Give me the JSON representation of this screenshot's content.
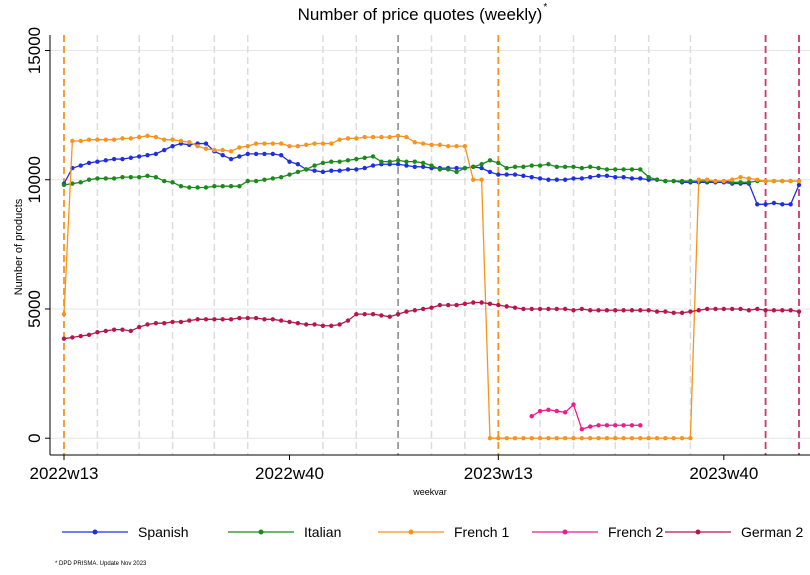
{
  "chart_data": {
    "type": "line",
    "title": "Number of price quotes (weekly)",
    "title_note": "*",
    "x_label": "weekvar",
    "y_label": "Number of products",
    "footnote": "* DPD PRISMA. Update Nov 2023",
    "categories": [
      "2022w13",
      "2022w14",
      "2022w15",
      "2022w16",
      "2022w17",
      "2022w18",
      "2022w19",
      "2022w20",
      "2022w21",
      "2022w22",
      "2022w23",
      "2022w24",
      "2022w25",
      "2022w26",
      "2022w27",
      "2022w28",
      "2022w29",
      "2022w30",
      "2022w31",
      "2022w32",
      "2022w33",
      "2022w34",
      "2022w35",
      "2022w36",
      "2022w37",
      "2022w38",
      "2022w39",
      "2022w40",
      "2022w41",
      "2022w42",
      "2022w43",
      "2022w44",
      "2022w45",
      "2022w46",
      "2022w47",
      "2022w48",
      "2022w49",
      "2022w50",
      "2022w51",
      "2022w52",
      "2023w1",
      "2023w2",
      "2023w3",
      "2023w4",
      "2023w5",
      "2023w6",
      "2023w7",
      "2023w8",
      "2023w9",
      "2023w10",
      "2023w11",
      "2023w12",
      "2023w13",
      "2023w14",
      "2023w15",
      "2023w16",
      "2023w17",
      "2023w18",
      "2023w19",
      "2023w20",
      "2023w21",
      "2023w22",
      "2023w23",
      "2023w24",
      "2023w25",
      "2023w26",
      "2023w27",
      "2023w28",
      "2023w29",
      "2023w30",
      "2023w31",
      "2023w32",
      "2023w33",
      "2023w34",
      "2023w35",
      "2023w36",
      "2023w37",
      "2023w38",
      "2023w39",
      "2023w40",
      "2023w41",
      "2023w42",
      "2023w43",
      "2023w44",
      "2023w45",
      "2023w46",
      "2023w47",
      "2023w48",
      "2023w49"
    ],
    "xticks": [
      "2022w13",
      "2022w40",
      "2023w13",
      "2023w40"
    ],
    "ylim": [
      -650,
      15600
    ],
    "yticks": [
      0,
      5000,
      10000,
      15000
    ],
    "grid": true,
    "vlines": [
      {
        "x": "2022w17",
        "color": "#dcdcdc"
      },
      {
        "x": "2022w22",
        "color": "#dcdcdc"
      },
      {
        "x": "2022w26",
        "color": "#dcdcdc"
      },
      {
        "x": "2022w31",
        "color": "#dcdcdc"
      },
      {
        "x": "2022w35",
        "color": "#dcdcdc"
      },
      {
        "x": "2022w44",
        "color": "#dcdcdc"
      },
      {
        "x": "2022w48",
        "color": "#dcdcdc"
      },
      {
        "x": "2023w5",
        "color": "#dcdcdc"
      },
      {
        "x": "2023w9",
        "color": "#dcdcdc"
      },
      {
        "x": "2023w18",
        "color": "#dcdcdc"
      },
      {
        "x": "2023w22",
        "color": "#dcdcdc"
      },
      {
        "x": "2023w27",
        "color": "#dcdcdc"
      },
      {
        "x": "2023w31",
        "color": "#dcdcdc"
      },
      {
        "x": "2023w36",
        "color": "#dcdcdc"
      },
      {
        "x": "2022w13",
        "color": "#f7941d"
      },
      {
        "x": "2023w13",
        "color": "#f7941d"
      },
      {
        "x": "2023w1",
        "color": "#9a9a9a"
      },
      {
        "x": "2023w45",
        "color": "#d6336c"
      },
      {
        "x": "2023w49",
        "color": "#d6336c"
      }
    ],
    "series": [
      {
        "name": "Spanish",
        "color": "#1f2fe0",
        "values": [
          9850,
          10450,
          10550,
          10650,
          10700,
          10750,
          10800,
          10800,
          10850,
          10900,
          10950,
          11000,
          11150,
          11300,
          11400,
          11350,
          11400,
          11400,
          11100,
          10950,
          10800,
          10900,
          11000,
          11000,
          11000,
          11000,
          10950,
          10700,
          10600,
          10400,
          10350,
          10300,
          10350,
          10350,
          10400,
          10400,
          10450,
          10550,
          10600,
          10600,
          10600,
          10550,
          10500,
          10500,
          10450,
          10450,
          10450,
          10450,
          10450,
          10500,
          10450,
          10300,
          10200,
          10200,
          10200,
          10150,
          10100,
          10050,
          10000,
          10000,
          10000,
          10050,
          10050,
          10100,
          10150,
          10150,
          10100,
          10100,
          10050,
          10050,
          10000,
          10000,
          9950,
          9950,
          9900,
          9900,
          9900,
          9900,
          9900,
          9900,
          9850,
          9850,
          9850,
          9050,
          9050,
          9100,
          9050,
          9050,
          9800
        ]
      },
      {
        "name": "Italian",
        "color": "#1a8a1a",
        "values": [
          9800,
          9850,
          9900,
          10000,
          10050,
          10050,
          10050,
          10100,
          10100,
          10100,
          10150,
          10100,
          9950,
          9900,
          9750,
          9700,
          9700,
          9700,
          9750,
          9750,
          9750,
          9750,
          9950,
          9950,
          10000,
          10050,
          10100,
          10200,
          10300,
          10400,
          10550,
          10650,
          10700,
          10700,
          10750,
          10800,
          10850,
          10900,
          10700,
          10700,
          10750,
          10700,
          10700,
          10650,
          10550,
          10400,
          10400,
          10300,
          10450,
          10500,
          10600,
          10750,
          10650,
          10450,
          10500,
          10500,
          10550,
          10550,
          10600,
          10500,
          10500,
          10500,
          10450,
          10500,
          10450,
          10400,
          10400,
          10400,
          10400,
          10400,
          10100,
          10000,
          9950,
          9950,
          9950,
          9950,
          9950,
          9950,
          9950,
          9950,
          9900,
          9900,
          9900,
          9950,
          9950,
          9950,
          9950,
          9950,
          9950
        ]
      },
      {
        "name": "French 1",
        "color": "#f7941d",
        "values": [
          4800,
          11500,
          11500,
          11550,
          11550,
          11550,
          11550,
          11600,
          11600,
          11650,
          11700,
          11650,
          11550,
          11550,
          11500,
          11450,
          11300,
          11200,
          11150,
          11150,
          11100,
          11250,
          11300,
          11400,
          11400,
          11400,
          11400,
          11300,
          11300,
          11350,
          11400,
          11400,
          11400,
          11550,
          11600,
          11600,
          11650,
          11650,
          11650,
          11650,
          11700,
          11650,
          11450,
          11400,
          11350,
          11350,
          11300,
          11300,
          11300,
          10000,
          10000,
          0,
          0,
          0,
          0,
          0,
          0,
          0,
          0,
          0,
          0,
          0,
          0,
          0,
          0,
          0,
          0,
          0,
          0,
          0,
          0,
          0,
          0,
          0,
          0,
          0,
          10000,
          10000,
          9950,
          9950,
          10000,
          10100,
          10050,
          10000,
          9950,
          9950,
          9950,
          9950,
          9950
        ]
      },
      {
        "name": "French 2",
        "color": "#ec1c8c",
        "values": [
          null,
          null,
          null,
          null,
          null,
          null,
          null,
          null,
          null,
          null,
          null,
          null,
          null,
          null,
          null,
          null,
          null,
          null,
          null,
          null,
          null,
          null,
          null,
          null,
          null,
          null,
          null,
          null,
          null,
          null,
          null,
          null,
          null,
          null,
          null,
          null,
          null,
          null,
          null,
          null,
          null,
          null,
          null,
          null,
          null,
          null,
          null,
          null,
          null,
          null,
          null,
          null,
          null,
          null,
          null,
          null,
          850,
          1050,
          1100,
          1050,
          1000,
          1300,
          350,
          450,
          500,
          500,
          500,
          500,
          500,
          500,
          null,
          null,
          null,
          null,
          null,
          null,
          null,
          null,
          null,
          null,
          null,
          null,
          null,
          null,
          null,
          null,
          null,
          null,
          null
        ]
      },
      {
        "name": "German 2",
        "color": "#b5174b",
        "values": [
          3850,
          3900,
          3950,
          4000,
          4100,
          4150,
          4200,
          4200,
          4150,
          4300,
          4400,
          4450,
          4450,
          4500,
          4500,
          4550,
          4600,
          4600,
          4600,
          4600,
          4600,
          4650,
          4650,
          4650,
          4600,
          4600,
          4550,
          4500,
          4450,
          4400,
          4400,
          4350,
          4350,
          4400,
          4550,
          4800,
          4800,
          4800,
          4750,
          4700,
          4800,
          4900,
          4950,
          5000,
          5050,
          5150,
          5150,
          5150,
          5200,
          5250,
          5250,
          5200,
          5150,
          5100,
          5050,
          5000,
          5000,
          5000,
          5000,
          5000,
          5000,
          4950,
          5000,
          4950,
          4950,
          4950,
          4950,
          4950,
          4950,
          4950,
          4950,
          4900,
          4900,
          4850,
          4850,
          4900,
          4950,
          5000,
          5000,
          5000,
          5000,
          5000,
          4950,
          5000,
          4950,
          4950,
          4950,
          4950,
          4900
        ]
      }
    ]
  }
}
